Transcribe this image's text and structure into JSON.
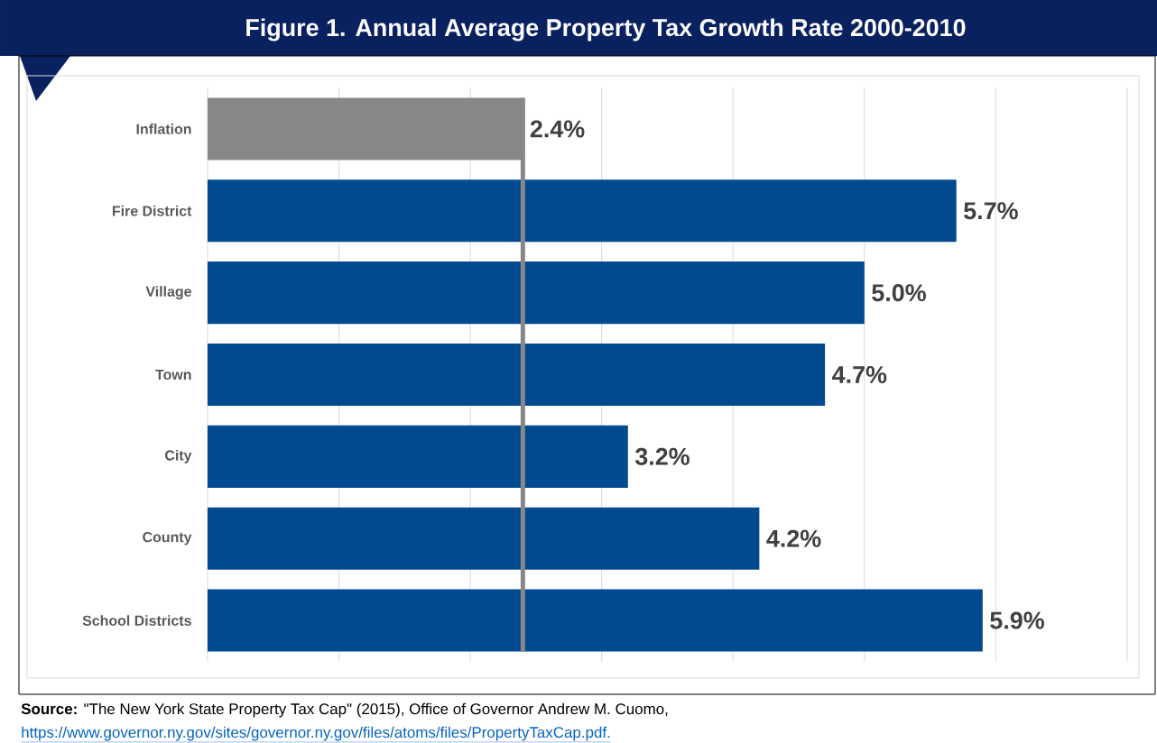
{
  "chart_data": {
    "type": "bar",
    "orientation": "horizontal",
    "title": "Figure 1. Annual Average Property Tax Growth Rate 2000-2010",
    "categories": [
      "Inflation",
      "Fire District",
      "Village",
      "Town",
      "City",
      "County",
      "School Districts"
    ],
    "values": [
      2.4,
      5.7,
      5.0,
      4.7,
      3.2,
      4.2,
      5.9
    ],
    "colors": [
      "#878787",
      "#024a8f",
      "#024a8f",
      "#024a8f",
      "#024a8f",
      "#024a8f",
      "#024a8f"
    ],
    "value_labels": [
      "2.4%",
      "5.7%",
      "5.0%",
      "4.7%",
      "3.2%",
      "4.2%",
      "5.9%"
    ],
    "xlim": [
      0,
      7
    ],
    "xticks": [
      {
        "value": 0,
        "label": null
      },
      {
        "value": 1,
        "label": null
      },
      {
        "value": 2,
        "label": null
      },
      {
        "value": 3,
        "label": null
      },
      {
        "value": 4,
        "label": null
      },
      {
        "value": 5,
        "label": null
      },
      {
        "value": 6,
        "label": null
      },
      {
        "value": 7,
        "label": null
      }
    ],
    "grid": "x",
    "tick_labels": "y",
    "ref_lines": [
      {
        "axis": "x",
        "value": 2.4,
        "color": "#878787"
      }
    ],
    "annotations": [
      "**Source:** \"The New York State Property Tax Cap\" (2015), Office of Governor Andrew M. Cuomo,",
      "https://www.governor.ny.gov/sites/governor.ny.gov/files/atoms/files/PropertyTaxCap.pdf."
    ]
  }
}
